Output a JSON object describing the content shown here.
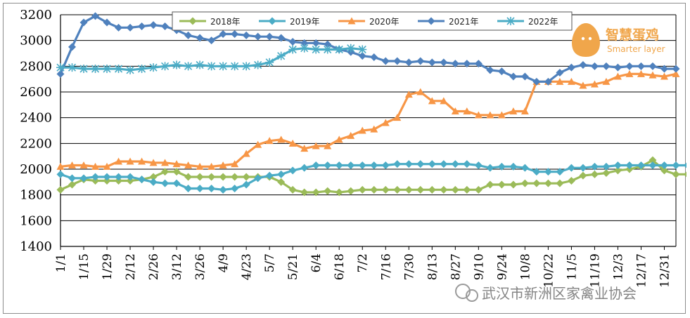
{
  "chart_data": {
    "type": "line",
    "title": "",
    "xlabel": "",
    "ylabel": "",
    "ylim": [
      1400,
      3200
    ],
    "yticks": [
      1400,
      1600,
      1800,
      2000,
      2200,
      2400,
      2600,
      2800,
      3000,
      3200
    ],
    "xticks": [
      "1/1",
      "1/15",
      "1/29",
      "2/12",
      "2/26",
      "3/12",
      "3/26",
      "4/9",
      "4/23",
      "5/7",
      "5/21",
      "6/4",
      "6/18",
      "7/2",
      "7/16",
      "7/30",
      "8/13",
      "8/27",
      "9/10",
      "9/24",
      "10/8",
      "10/22",
      "11/5",
      "11/19",
      "12/3",
      "12/17",
      "12/31"
    ],
    "grid": "horizontal",
    "legend_position": "top-center",
    "series": [
      {
        "name": "2018年",
        "color": "#9bbb59",
        "marker": "diamond",
        "values": [
          1840,
          1880,
          1920,
          1910,
          1910,
          1910,
          1910,
          1920,
          1940,
          1980,
          1980,
          1940,
          1940,
          1940,
          1940,
          1940,
          1940,
          1940,
          1940,
          1900,
          1840,
          1820,
          1820,
          1830,
          1820,
          1830,
          1840,
          1840,
          1840,
          1840,
          1840,
          1840,
          1840,
          1840,
          1840,
          1840,
          1840,
          1880,
          1880,
          1880,
          1890,
          1890,
          1890,
          1890,
          1910,
          1950,
          1960,
          1970,
          1990,
          2000,
          2020,
          2070,
          1990,
          1960,
          1960
        ]
      },
      {
        "name": "2019年",
        "color": "#4bacc6",
        "marker": "diamond",
        "values": [
          1960,
          1930,
          1930,
          1940,
          1940,
          1940,
          1940,
          1920,
          1900,
          1890,
          1890,
          1850,
          1850,
          1850,
          1840,
          1850,
          1880,
          1930,
          1950,
          1960,
          1990,
          2010,
          2030,
          2030,
          2030,
          2030,
          2030,
          2030,
          2030,
          2040,
          2040,
          2040,
          2040,
          2040,
          2040,
          2040,
          2030,
          2010,
          2020,
          2020,
          2010,
          1980,
          1980,
          1980,
          2010,
          2010,
          2020,
          2020,
          2030,
          2030,
          2030,
          2030,
          2030,
          2030,
          2030
        ]
      },
      {
        "name": "2020年",
        "color": "#f79646",
        "marker": "triangle",
        "values": [
          2020,
          2030,
          2030,
          2020,
          2020,
          2060,
          2060,
          2060,
          2050,
          2050,
          2040,
          2030,
          2020,
          2020,
          2030,
          2040,
          2120,
          2190,
          2220,
          2230,
          2200,
          2160,
          2180,
          2180,
          2230,
          2260,
          2300,
          2310,
          2360,
          2400,
          2580,
          2600,
          2530,
          2530,
          2450,
          2450,
          2420,
          2420,
          2420,
          2450,
          2450,
          2680,
          2680,
          2680,
          2680,
          2650,
          2660,
          2680,
          2720,
          2740,
          2740,
          2730,
          2720,
          2740
        ]
      },
      {
        "name": "2021年",
        "color": "#4f81bd",
        "marker": "diamond",
        "values": [
          2740,
          2950,
          3140,
          3190,
          3140,
          3100,
          3100,
          3110,
          3120,
          3110,
          3080,
          3040,
          3020,
          3000,
          3050,
          3050,
          3040,
          3030,
          3030,
          3020,
          2990,
          2980,
          2980,
          2970,
          2930,
          2910,
          2880,
          2870,
          2840,
          2840,
          2830,
          2840,
          2830,
          2830,
          2820,
          2820,
          2820,
          2770,
          2760,
          2720,
          2720,
          2680,
          2680,
          2750,
          2790,
          2810,
          2800,
          2800,
          2790,
          2800,
          2800,
          2800,
          2780,
          2780
        ]
      },
      {
        "name": "2022年",
        "color": "#4bacc6",
        "marker": "asterisk",
        "values": [
          2790,
          2790,
          2780,
          2780,
          2780,
          2780,
          2770,
          2780,
          2790,
          2800,
          2810,
          2800,
          2810,
          2800,
          2800,
          2800,
          2800,
          2810,
          2830,
          2880,
          2930,
          2940,
          2930,
          2930,
          2930,
          2940,
          2930
        ]
      }
    ]
  },
  "logo": {
    "name": "智慧蛋鸡",
    "sub": "Smarter layer",
    "color": "#f0a64b"
  },
  "watermark": {
    "text": "武汉市新洲区家禽业协会"
  }
}
